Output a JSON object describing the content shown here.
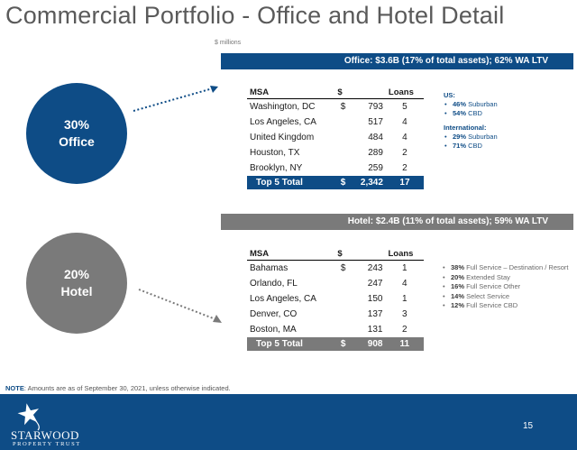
{
  "title": "Commercial Portfolio - Office and Hotel Detail",
  "units": "$ millions",
  "office": {
    "circle_pct": "30%",
    "circle_label": "Office",
    "banner": "Office:  $3.6B (17% of total assets); 62% WA LTV",
    "table": {
      "headers": [
        "MSA",
        "$",
        "Loans"
      ],
      "rows": [
        {
          "msa": "Washington, DC",
          "cur": "$",
          "amt": "793",
          "loans": "5"
        },
        {
          "msa": "Los Angeles, CA",
          "cur": "",
          "amt": "517",
          "loans": "4"
        },
        {
          "msa": "United Kingdom",
          "cur": "",
          "amt": "484",
          "loans": "4"
        },
        {
          "msa": "Houston, TX",
          "cur": "",
          "amt": "289",
          "loans": "2"
        },
        {
          "msa": "Brooklyn, NY",
          "cur": "",
          "amt": "259",
          "loans": "2"
        }
      ],
      "total": {
        "label": "Top 5 Total",
        "cur": "$",
        "amt": "2,342",
        "loans": "17"
      }
    },
    "side": {
      "us_header": "US:",
      "us_items": [
        {
          "pct": "46%",
          "text": "Suburban"
        },
        {
          "pct": "54%",
          "text": "CBD"
        }
      ],
      "intl_header": "International:",
      "intl_items": [
        {
          "pct": "29%",
          "text": "Suburban"
        },
        {
          "pct": "71%",
          "text": "CBD"
        }
      ]
    }
  },
  "hotel": {
    "circle_pct": "20%",
    "circle_label": "Hotel",
    "banner": "Hotel:  $2.4B (11% of total assets); 59% WA LTV",
    "table": {
      "headers": [
        "MSA",
        "$",
        "Loans"
      ],
      "rows": [
        {
          "msa": "Bahamas",
          "cur": "$",
          "amt": "243",
          "loans": "1"
        },
        {
          "msa": "Orlando, FL",
          "cur": "",
          "amt": "247",
          "loans": "4"
        },
        {
          "msa": "Los Angeles, CA",
          "cur": "",
          "amt": "150",
          "loans": "1"
        },
        {
          "msa": "Denver, CO",
          "cur": "",
          "amt": "137",
          "loans": "3"
        },
        {
          "msa": "Boston, MA",
          "cur": "",
          "amt": "131",
          "loans": "2"
        }
      ],
      "total": {
        "label": "Top 5 Total",
        "cur": "$",
        "amt": "908",
        "loans": "11"
      }
    },
    "side_items": [
      {
        "pct": "38%",
        "text": "Full Service – Destination / Resort"
      },
      {
        "pct": "20%",
        "text": "Extended Stay"
      },
      {
        "pct": "16%",
        "text": "Full Service Other"
      },
      {
        "pct": "14%",
        "text": "Select Service"
      },
      {
        "pct": "12%",
        "text": "Full Service CBD"
      }
    ]
  },
  "note_label": "NOTE",
  "note_text": ":  Amounts are as of September 30, 2021, unless otherwise indicated.",
  "logo_name": "STARWOOD",
  "logo_sub": "PROPERTY TRUST",
  "logo_icon": "star-logo-icon",
  "page_number": "15",
  "colors": {
    "primary": "#0e4c86",
    "secondary": "#7a7a7a"
  }
}
